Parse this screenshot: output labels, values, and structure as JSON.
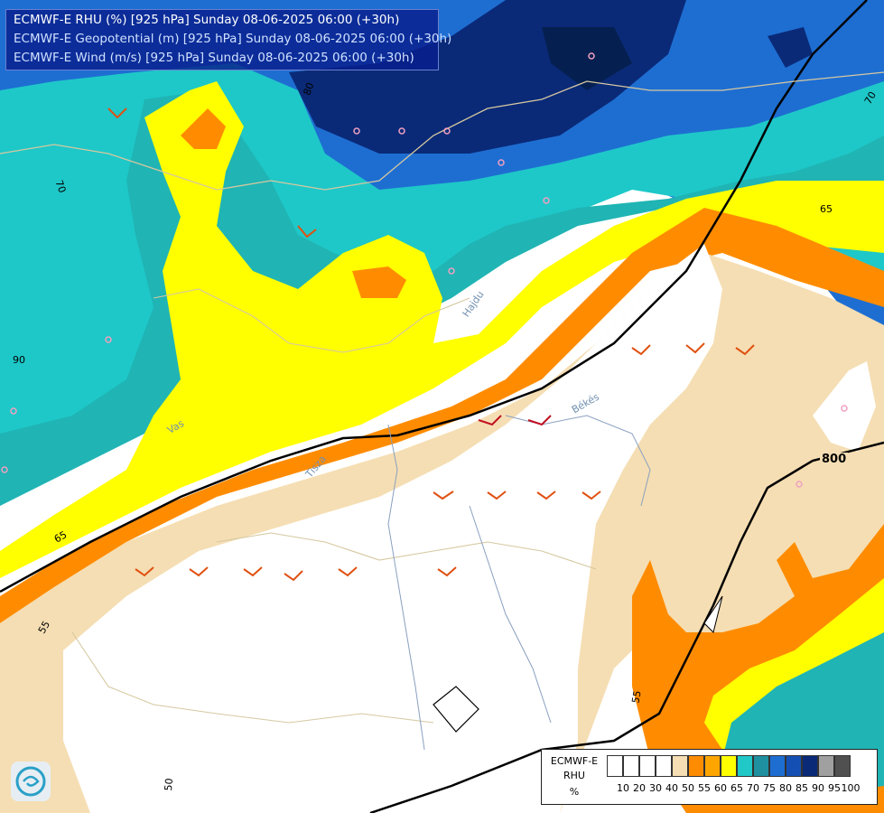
{
  "header": {
    "line1": "ECMWF-E RHU (%) [925 hPa] Sunday 08-06-2025 06:00 (+30h)",
    "line2": "ECMWF-E Geopotential (m) [925 hPa] Sunday 08-06-2025 06:00 (+30h)",
    "line3": "ECMWF-E Wind (m/s) [925 hPa] Sunday 08-06-2025 06:00 (+30h)"
  },
  "legend": {
    "title_line1": "ECMWF-E",
    "title_line2": "RHU",
    "title_line3": "%",
    "levels": [
      "10",
      "20",
      "30",
      "40",
      "50",
      "55",
      "60",
      "65",
      "70",
      "75",
      "80",
      "85",
      "90",
      "95",
      "100"
    ],
    "colors": [
      "#ffffff",
      "#ffffff",
      "#ffffff",
      "#ffffff",
      "#f5deb3",
      "#ff8c00",
      "#ffa500",
      "#ffff00",
      "#20c8c8",
      "#1e90a0",
      "#1e6ed2",
      "#1450b4",
      "#0a2a78",
      "#a0a0a0",
      "#505050"
    ]
  },
  "map_labels": {
    "contour_80": "80",
    "contour_70": "70",
    "contour_65": "65",
    "contour_55": "55",
    "contour_50": "50",
    "contour_90": "90",
    "geopotential_800": "800",
    "place_bekes": "Békés",
    "place_hajdu": "Hajdu",
    "place_vas": "Vas",
    "river_tisza": "Tisza"
  },
  "logo_icon": "ecmwf-logo-icon"
}
